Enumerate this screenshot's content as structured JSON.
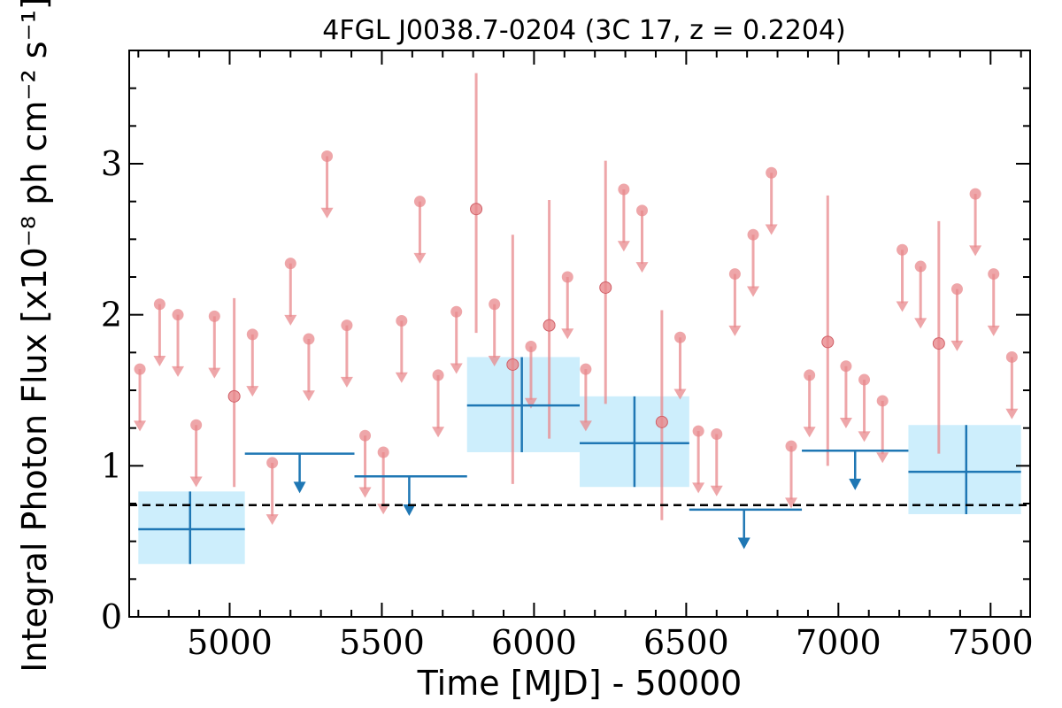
{
  "chart_data": {
    "type": "scatter",
    "title": "4FGL J0038.7-0204 (3C 17, z = 0.2204)",
    "xlabel": "Time [MJD] - 50000",
    "ylabel": "Integral Photon Flux [x10⁻⁸ ph cm⁻² s⁻¹]",
    "xlim": [
      4670,
      7630
    ],
    "ylim": [
      0,
      3.75
    ],
    "x_ticks": [
      5000,
      5500,
      6000,
      6500,
      7000,
      7500
    ],
    "x_tick_labels": [
      "5000",
      "5500",
      "6000",
      "6500",
      "7000",
      "7500"
    ],
    "y_ticks": [
      0,
      1,
      2,
      3
    ],
    "y_tick_labels": [
      "0",
      "1",
      "2",
      "3"
    ],
    "reference_line": 0.74,
    "colors": {
      "short_bins": "#e8888c",
      "long_bins": "#1f77b4",
      "long_band": "#cdeefc",
      "reference": "#000000"
    },
    "long_bins_detections": [
      {
        "x": 4870,
        "x_lo": 4700,
        "x_hi": 5050,
        "y": 0.58,
        "y_lo": 0.35,
        "y_hi": 0.83
      },
      {
        "x": 5960,
        "x_lo": 5780,
        "x_hi": 6150,
        "y": 1.4,
        "y_lo": 1.09,
        "y_hi": 1.72
      },
      {
        "x": 6330,
        "x_lo": 6150,
        "x_hi": 6510,
        "y": 1.15,
        "y_lo": 0.86,
        "y_hi": 1.46
      },
      {
        "x": 7420,
        "x_lo": 7230,
        "x_hi": 7600,
        "y": 0.96,
        "y_lo": 0.68,
        "y_hi": 1.27
      }
    ],
    "long_bins_upper_limits": [
      {
        "x": 5230,
        "x_lo": 5050,
        "x_hi": 5410,
        "y": 1.08
      },
      {
        "x": 5590,
        "x_lo": 5410,
        "x_hi": 5780,
        "y": 0.93
      },
      {
        "x": 6690,
        "x_lo": 6510,
        "x_hi": 6880,
        "y": 0.71
      },
      {
        "x": 7055,
        "x_lo": 6880,
        "x_hi": 7230,
        "y": 1.1
      }
    ],
    "short_bins_detections": [
      {
        "x": 5015,
        "y": 1.46,
        "y_lo": 0.86,
        "y_hi": 2.11
      },
      {
        "x": 5810,
        "y": 2.7,
        "y_lo": 1.88,
        "y_hi": 3.6
      },
      {
        "x": 5930,
        "y": 1.67,
        "y_lo": 0.88,
        "y_hi": 2.53
      },
      {
        "x": 6050,
        "y": 1.93,
        "y_lo": 1.18,
        "y_hi": 2.76
      },
      {
        "x": 6235,
        "y": 2.18,
        "y_lo": 1.41,
        "y_hi": 3.02
      },
      {
        "x": 6420,
        "y": 1.29,
        "y_lo": 0.64,
        "y_hi": 2.03
      },
      {
        "x": 6965,
        "y": 1.82,
        "y_lo": 1.0,
        "y_hi": 2.79
      },
      {
        "x": 7330,
        "y": 1.81,
        "y_lo": 1.08,
        "y_hi": 2.62
      }
    ],
    "short_bins_upper_limits": [
      {
        "x": 4705,
        "y": 1.64
      },
      {
        "x": 4770,
        "y": 2.07
      },
      {
        "x": 4830,
        "y": 2.0
      },
      {
        "x": 4890,
        "y": 1.27
      },
      {
        "x": 4950,
        "y": 1.99
      },
      {
        "x": 5075,
        "y": 1.87
      },
      {
        "x": 5140,
        "y": 1.02
      },
      {
        "x": 5200,
        "y": 2.34
      },
      {
        "x": 5260,
        "y": 1.84
      },
      {
        "x": 5320,
        "y": 3.05
      },
      {
        "x": 5385,
        "y": 1.93
      },
      {
        "x": 5445,
        "y": 1.2
      },
      {
        "x": 5505,
        "y": 1.09
      },
      {
        "x": 5565,
        "y": 1.96
      },
      {
        "x": 5625,
        "y": 2.75
      },
      {
        "x": 5685,
        "y": 1.6
      },
      {
        "x": 5745,
        "y": 2.02
      },
      {
        "x": 5870,
        "y": 2.07
      },
      {
        "x": 5990,
        "y": 1.79
      },
      {
        "x": 6110,
        "y": 2.25
      },
      {
        "x": 6170,
        "y": 1.64
      },
      {
        "x": 6295,
        "y": 2.83
      },
      {
        "x": 6355,
        "y": 2.69
      },
      {
        "x": 6480,
        "y": 1.85
      },
      {
        "x": 6540,
        "y": 1.23
      },
      {
        "x": 6600,
        "y": 1.21
      },
      {
        "x": 6660,
        "y": 2.27
      },
      {
        "x": 6720,
        "y": 2.53
      },
      {
        "x": 6780,
        "y": 2.94
      },
      {
        "x": 6845,
        "y": 1.13
      },
      {
        "x": 6905,
        "y": 1.6
      },
      {
        "x": 7025,
        "y": 1.66
      },
      {
        "x": 7085,
        "y": 1.57
      },
      {
        "x": 7145,
        "y": 1.43
      },
      {
        "x": 7210,
        "y": 2.43
      },
      {
        "x": 7270,
        "y": 2.32
      },
      {
        "x": 7390,
        "y": 2.17
      },
      {
        "x": 7450,
        "y": 2.8
      },
      {
        "x": 7510,
        "y": 2.27
      },
      {
        "x": 7570,
        "y": 1.72
      }
    ]
  }
}
